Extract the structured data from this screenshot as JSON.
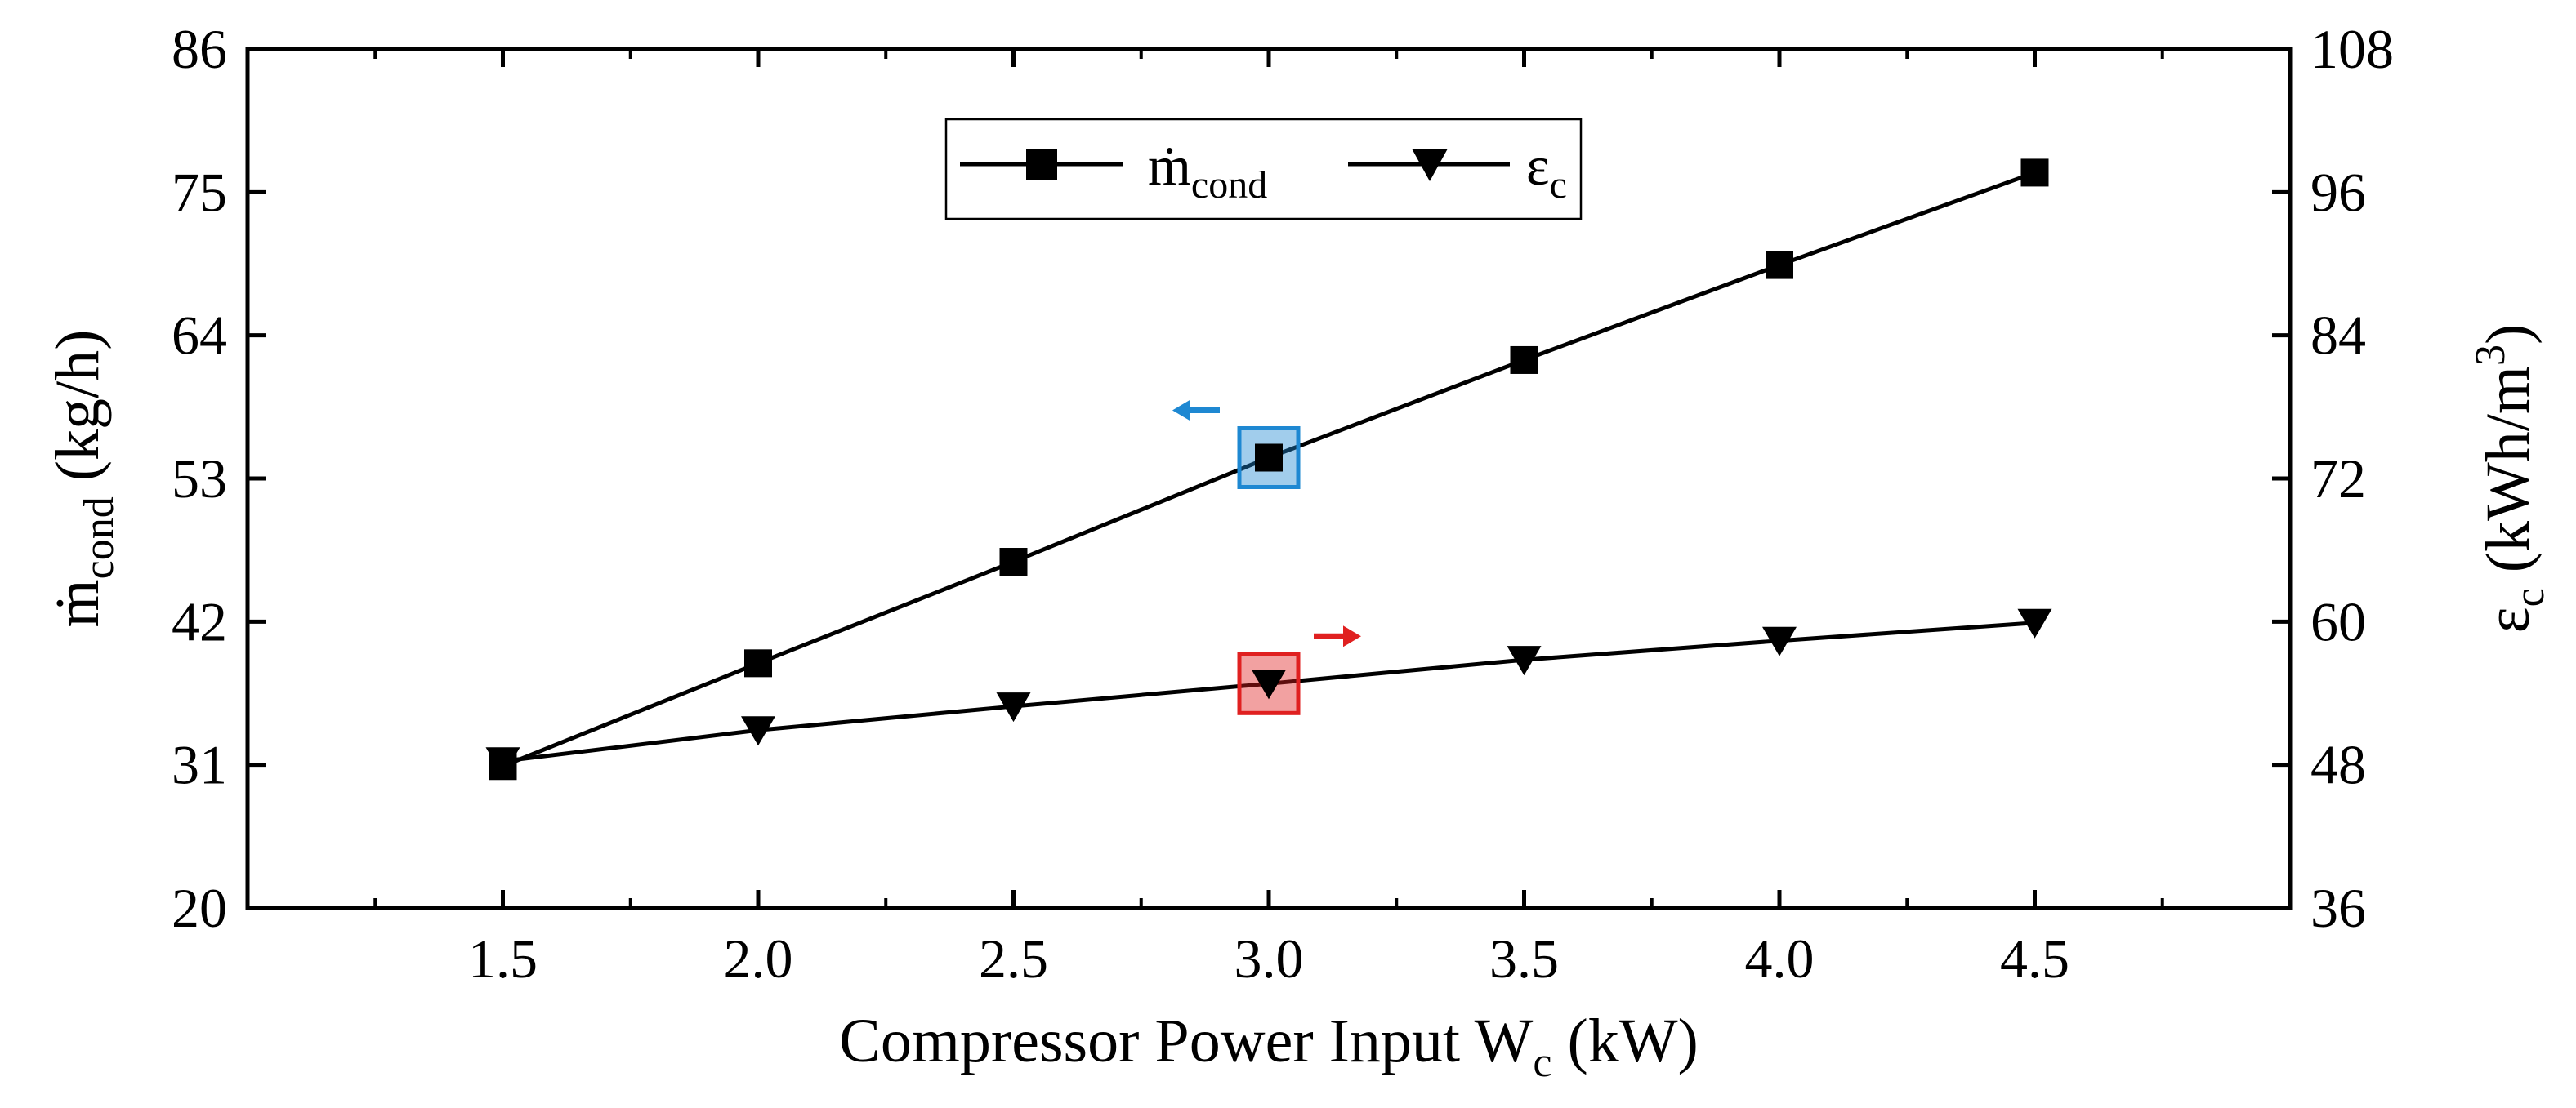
{
  "chart_data": {
    "type": "line",
    "title": "",
    "xlabel": {
      "main": "Compressor Power Input W",
      "sub": "c",
      "unit": " (kW)"
    },
    "ylabel_left": {
      "main": "ṁ",
      "sub": "cond",
      "unit": " (kg/h)"
    },
    "ylabel_right": {
      "main": "ε",
      "sub": "c",
      "unit_pre": " (kWh/m",
      "sup": "3",
      "unit_post": ")"
    },
    "x": [
      1.5,
      2.0,
      2.5,
      3.0,
      3.5,
      4.0,
      4.5
    ],
    "xlim": [
      1.0,
      5.0
    ],
    "x_tick_values": [
      1.5,
      2.0,
      2.5,
      3.0,
      3.5,
      4.0,
      4.5
    ],
    "x_tick_labels": [
      "1.5",
      "2.0",
      "2.5",
      "3.0",
      "3.5",
      "4.0",
      "4.5"
    ],
    "ylim_left": [
      20,
      86
    ],
    "y_left_tick_values": [
      20,
      31,
      42,
      53,
      64,
      75,
      86
    ],
    "y_left_tick_labels": [
      "20",
      "31",
      "42",
      "53",
      "64",
      "75",
      "86"
    ],
    "ylim_right": [
      36,
      108
    ],
    "y_right_tick_values": [
      36,
      48,
      60,
      72,
      84,
      96,
      108
    ],
    "y_right_tick_labels": [
      "36",
      "48",
      "60",
      "72",
      "84",
      "96",
      "108"
    ],
    "series": [
      {
        "name": "ṁ",
        "sub": "cond",
        "axis": "left",
        "marker": "square",
        "values": [
          30.9,
          38.8,
          46.6,
          54.6,
          62.1,
          69.4,
          76.5
        ]
      },
      {
        "name": "ε",
        "sub": "c",
        "axis": "right",
        "marker": "triangle-down",
        "values": [
          48.3,
          50.9,
          52.9,
          54.8,
          56.8,
          58.4,
          59.9
        ]
      }
    ],
    "legend_position": "top-center",
    "highlights": [
      {
        "series": "ṁ",
        "x": 3.0,
        "color": "#1E88D2",
        "arrow": "left"
      },
      {
        "series": "ε",
        "x": 3.0,
        "color": "#E02020",
        "arrow": "right"
      }
    ]
  }
}
